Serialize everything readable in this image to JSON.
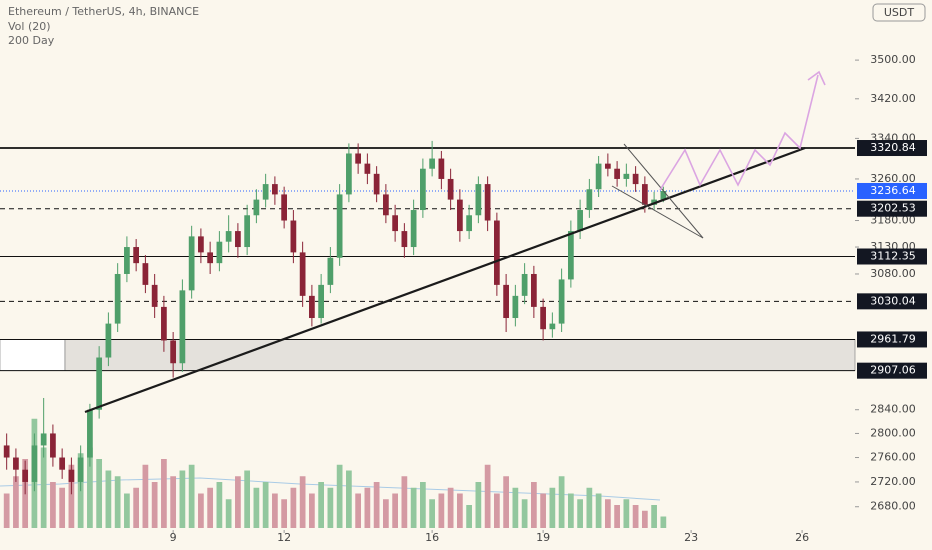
{
  "chart_data": {
    "type": "candlestick",
    "title": "Ethereum / TetherUS, 4h, BINANCE",
    "indicators": [
      "Vol (20)",
      "200 Day"
    ],
    "currency": "USDT",
    "log_scale": true,
    "up_color": "#4f9f6a",
    "down_color": "#8a2437",
    "volume_up_color": "#93c79e",
    "volume_down_color": "#d49aa3",
    "xlim": [
      4.32,
      27.43
    ],
    "xticks": [
      9,
      12,
      16,
      19,
      23,
      26
    ],
    "ylim": [
      2643,
      3628
    ],
    "yticks": [
      {
        "value": 2680,
        "label": "2680.00"
      },
      {
        "value": 2720,
        "label": "2720.00"
      },
      {
        "value": 2760,
        "label": "2760.00"
      },
      {
        "value": 2800,
        "label": "2800.00"
      },
      {
        "value": 2840,
        "label": "2840.00"
      },
      {
        "value": 3080,
        "label": "3080.00"
      },
      {
        "value": 3130,
        "label": "3130.00"
      },
      {
        "value": 3180,
        "label": "3180.00"
      },
      {
        "value": 3260,
        "label": "3260.00"
      },
      {
        "value": 3340,
        "label": "3340.00"
      },
      {
        "value": 3420,
        "label": "3420.00"
      },
      {
        "value": 3500,
        "label": "3500.00"
      }
    ],
    "x": [
      4.5,
      4.75,
      5,
      5.25,
      5.5,
      5.75,
      6,
      6.25,
      6.5,
      6.75,
      7,
      7.25,
      7.5,
      7.75,
      8,
      8.25,
      8.5,
      8.75,
      9,
      9.25,
      9.5,
      9.75,
      10,
      10.25,
      10.5,
      10.75,
      11,
      11.25,
      11.5,
      11.75,
      12,
      12.25,
      12.5,
      12.75,
      13,
      13.25,
      13.5,
      13.75,
      14,
      14.25,
      14.5,
      14.75,
      15,
      15.25,
      15.5,
      15.75,
      16,
      16.25,
      16.5,
      16.75,
      17,
      17.25,
      17.5,
      17.75,
      18,
      18.25,
      18.5,
      18.75,
      19,
      19.25,
      19.5,
      19.75,
      20,
      20.25,
      20.5,
      20.75,
      21,
      21.25,
      21.5,
      21.75,
      22,
      22.25
    ],
    "open": [
      2780,
      2760,
      2740,
      2720,
      2780,
      2800,
      2760,
      2740,
      2720,
      2760,
      2840,
      2930,
      2990,
      3080,
      3130,
      3100,
      3060,
      3020,
      2960,
      2920,
      3050,
      3150,
      3120,
      3100,
      3140,
      3160,
      3130,
      3190,
      3220,
      3250,
      3230,
      3180,
      3120,
      3040,
      3000,
      3060,
      3110,
      3230,
      3310,
      3290,
      3270,
      3230,
      3190,
      3160,
      3130,
      3200,
      3280,
      3300,
      3260,
      3220,
      3160,
      3190,
      3250,
      3180,
      3060,
      3000,
      3040,
      3080,
      3020,
      2980,
      2990,
      3070,
      3160,
      3200,
      3240,
      3290,
      3280,
      3260,
      3270,
      3250,
      3210,
      3220
    ],
    "high": [
      2800,
      2775,
      2755,
      2800,
      2860,
      2815,
      2775,
      2760,
      2780,
      2850,
      2950,
      3010,
      3100,
      3150,
      3145,
      3115,
      3080,
      3040,
      2975,
      3070,
      3170,
      3165,
      3140,
      3160,
      3190,
      3175,
      3210,
      3240,
      3270,
      3265,
      3245,
      3200,
      3140,
      3060,
      3080,
      3130,
      3250,
      3330,
      3330,
      3310,
      3285,
      3250,
      3210,
      3175,
      3220,
      3300,
      3335,
      3315,
      3280,
      3240,
      3210,
      3265,
      3265,
      3195,
      3080,
      3060,
      3100,
      3095,
      3035,
      3010,
      3090,
      3180,
      3220,
      3260,
      3305,
      3310,
      3295,
      3290,
      3285,
      3265,
      3235,
      3245
    ],
    "low": [
      2740,
      2720,
      2700,
      2705,
      2760,
      2745,
      2725,
      2700,
      2705,
      2745,
      2825,
      2915,
      2975,
      3065,
      3085,
      3045,
      3000,
      2940,
      2895,
      2905,
      3035,
      3100,
      3080,
      3085,
      3120,
      3110,
      3115,
      3175,
      3205,
      3210,
      3165,
      3100,
      3020,
      2985,
      2990,
      3045,
      3095,
      3215,
      3270,
      3250,
      3215,
      3175,
      3140,
      3110,
      3115,
      3185,
      3265,
      3240,
      3200,
      3140,
      3145,
      3175,
      3160,
      3040,
      2975,
      2985,
      3025,
      3000,
      2960,
      2965,
      2975,
      3055,
      3145,
      3185,
      3225,
      3265,
      3245,
      3245,
      3235,
      3195,
      3200,
      3215
    ],
    "close": [
      2760,
      2740,
      2720,
      2780,
      2800,
      2760,
      2740,
      2720,
      2760,
      2840,
      2930,
      2990,
      3080,
      3130,
      3100,
      3060,
      3020,
      2960,
      2920,
      3050,
      3150,
      3120,
      3100,
      3140,
      3160,
      3130,
      3190,
      3220,
      3250,
      3230,
      3180,
      3120,
      3040,
      3000,
      3060,
      3110,
      3230,
      3310,
      3290,
      3270,
      3230,
      3190,
      3160,
      3130,
      3200,
      3280,
      3300,
      3260,
      3220,
      3160,
      3190,
      3250,
      3180,
      3060,
      3000,
      3040,
      3080,
      3020,
      2980,
      2990,
      3070,
      3160,
      3200,
      3240,
      3290,
      3280,
      3260,
      3270,
      3250,
      3210,
      3220,
      3236.64
    ],
    "volume": [
      30,
      45,
      60,
      95,
      70,
      40,
      35,
      55,
      65,
      70,
      60,
      50,
      45,
      30,
      35,
      55,
      40,
      60,
      45,
      50,
      55,
      30,
      35,
      40,
      25,
      45,
      50,
      35,
      40,
      30,
      25,
      35,
      45,
      30,
      40,
      35,
      55,
      50,
      30,
      35,
      40,
      25,
      30,
      45,
      35,
      40,
      25,
      30,
      35,
      30,
      20,
      40,
      55,
      30,
      45,
      35,
      25,
      40,
      30,
      35,
      45,
      30,
      25,
      35,
      30,
      25,
      20,
      25,
      20,
      15,
      20,
      10
    ],
    "levels": [
      {
        "value": 3320.84,
        "style": "solid"
      },
      {
        "value": 3202.53,
        "style": "dashed"
      },
      {
        "value": 3112.35,
        "style": "solid"
      },
      {
        "value": 3030.04,
        "style": "dashed"
      },
      {
        "value": 2961.79,
        "style": "zone"
      },
      {
        "value": 2907.06,
        "style": "zone"
      }
    ],
    "last_price": {
      "value": 3236.64,
      "color": "#2962ff"
    }
  }
}
